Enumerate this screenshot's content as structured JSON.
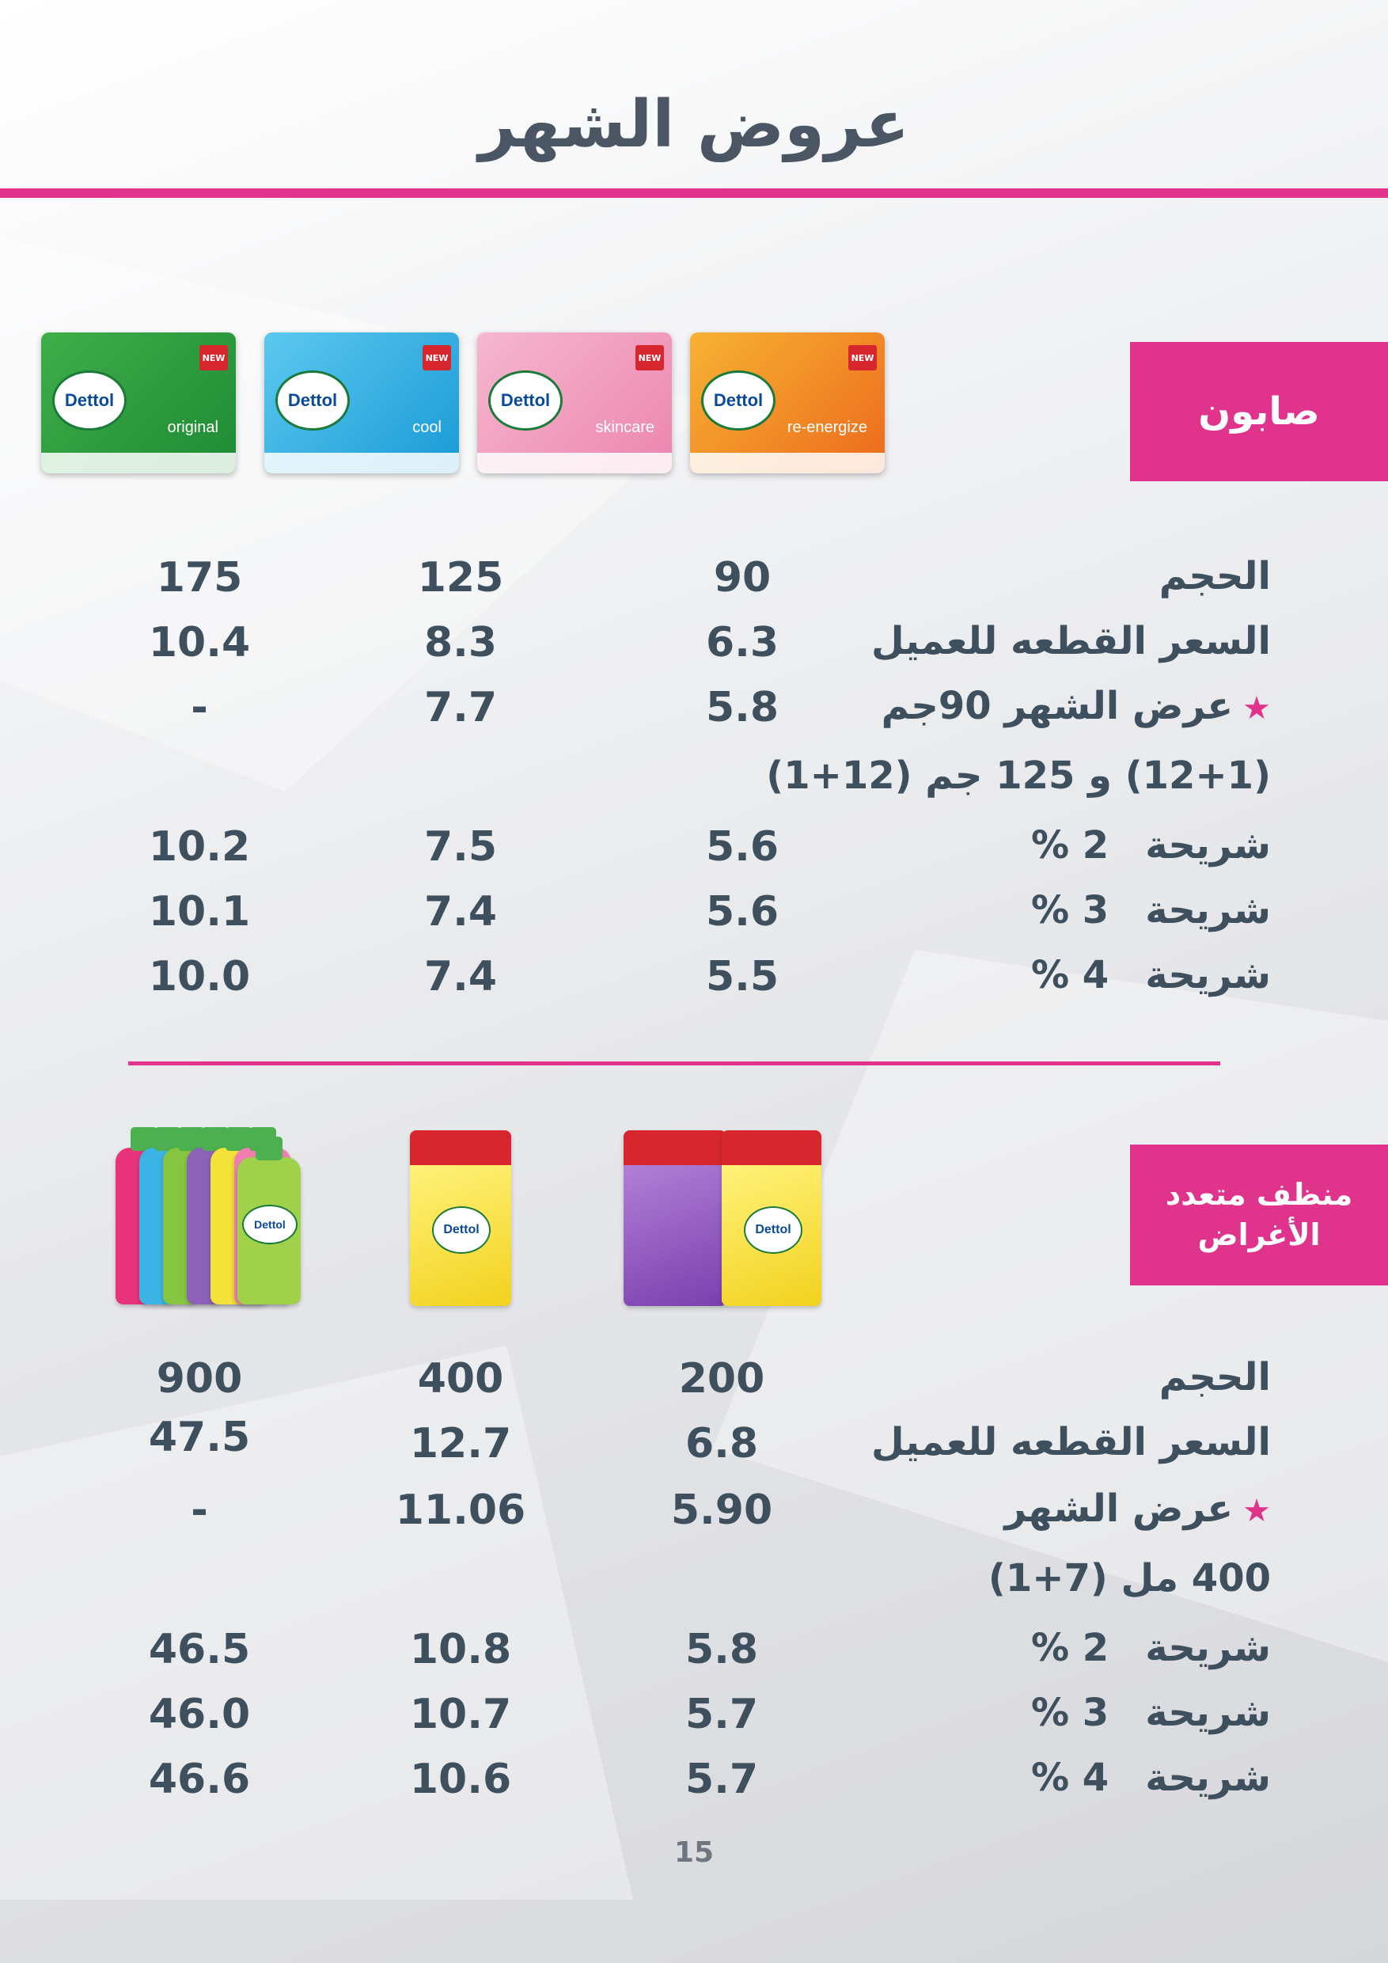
{
  "title": "عروض الشهر",
  "page_number": "15",
  "sections": [
    {
      "category": "صابون",
      "product_labels": [
        {
          "brand": "Dettol",
          "badge": "NEW",
          "variant": "original"
        },
        {
          "brand": "Dettol",
          "badge": "NEW",
          "variant": "cool"
        },
        {
          "brand": "Dettol",
          "badge": "NEW",
          "variant": "skincare"
        },
        {
          "brand": "Dettol",
          "badge": "NEW",
          "variant": "re-energize"
        }
      ],
      "rows": {
        "size": {
          "label": "الحجم",
          "values": [
            "90",
            "125",
            "175"
          ]
        },
        "price": {
          "label": "السعر القطعه للعميل",
          "values": [
            "6.3",
            "8.3",
            "10.4"
          ]
        },
        "offer": {
          "label": "عرض الشهر 90جم",
          "sublabel": "(12+1) و 125 جم (12+1)",
          "values": [
            "5.8",
            "7.7",
            "-"
          ]
        },
        "tiers": [
          {
            "label": "شريحة",
            "pct": "2 %",
            "values": [
              "5.6",
              "7.5",
              "10.2"
            ]
          },
          {
            "label": "شريحة",
            "pct": "3 %",
            "values": [
              "5.6",
              "7.4",
              "10.1"
            ]
          },
          {
            "label": "شريحة",
            "pct": "4 %",
            "values": [
              "5.5",
              "7.4",
              "10.0"
            ]
          }
        ]
      }
    },
    {
      "category": "منظف متعدد\nالأغراض",
      "product_labels": [
        {
          "brand": "Dettol"
        },
        {
          "brand": "Dettol"
        },
        {
          "brand": "Dettol"
        }
      ],
      "rows": {
        "size": {
          "label": "الحجم",
          "values": [
            "200",
            "400",
            "900"
          ]
        },
        "price": {
          "label": "السعر القطعه للعميل",
          "values": [
            "6.8",
            "12.7",
            "47.5"
          ]
        },
        "offer": {
          "label": "عرض الشهر",
          "sublabel": "400 مل (7+1)",
          "values": [
            "5.90",
            "11.06",
            "-"
          ]
        },
        "tiers": [
          {
            "label": "شريحة",
            "pct": "2 %",
            "values": [
              "5.8",
              "10.8",
              "46.5"
            ]
          },
          {
            "label": "شريحة",
            "pct": "3 %",
            "values": [
              "5.7",
              "10.7",
              "46.0"
            ]
          },
          {
            "label": "شريحة",
            "pct": "4 %",
            "values": [
              "5.7",
              "10.6",
              "46.6"
            ]
          }
        ]
      }
    }
  ],
  "colors": {
    "accent": "#e0338c",
    "text": "#3e4f5e"
  }
}
